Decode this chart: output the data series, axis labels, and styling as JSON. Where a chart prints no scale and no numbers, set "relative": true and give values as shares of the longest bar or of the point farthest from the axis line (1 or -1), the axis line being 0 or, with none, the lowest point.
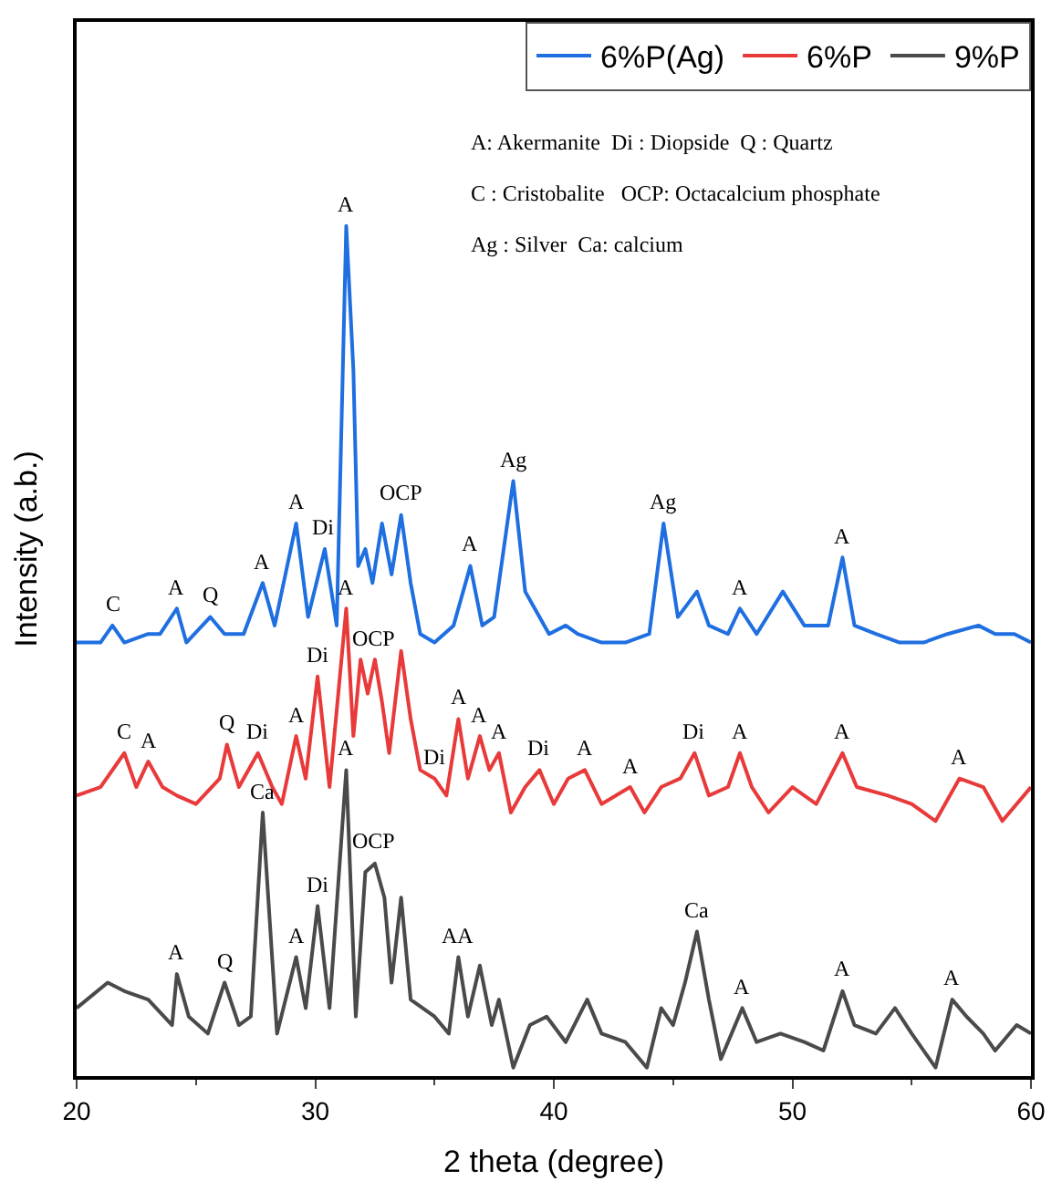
{
  "chart_data": {
    "type": "line",
    "relative": true,
    "xlabel": "2 theta (degree)",
    "ylabel": "Intensity (a.b.)",
    "xlim": [
      20,
      60
    ],
    "xticks": [
      20,
      30,
      40,
      50,
      60
    ],
    "legend": "top right",
    "marker": "none",
    "line_style": "solid",
    "series": [
      {
        "name": "6%P(Ag)",
        "color": "#1f6fe0",
        "x": [
          20.0,
          21.0,
          21.5,
          22.0,
          23.0,
          23.5,
          24.2,
          24.6,
          25.6,
          26.2,
          27.0,
          27.8,
          28.3,
          29.2,
          29.7,
          30.4,
          30.9,
          31.3,
          31.6,
          31.8,
          32.1,
          32.4,
          32.8,
          33.2,
          33.6,
          34.0,
          34.4,
          35.0,
          35.8,
          36.5,
          37.0,
          37.5,
          38.3,
          38.8,
          39.2,
          39.8,
          40.5,
          41.0,
          42.0,
          43.0,
          44.0,
          44.6,
          45.2,
          46.0,
          46.5,
          47.3,
          47.8,
          48.5,
          49.6,
          50.5,
          51.5,
          52.1,
          52.6,
          53.5,
          54.5,
          55.5,
          56.5,
          57.8,
          58.5,
          59.3,
          60.0
        ],
        "values": [
          0.51,
          0.51,
          0.53,
          0.51,
          0.52,
          0.52,
          0.55,
          0.51,
          0.54,
          0.52,
          0.52,
          0.58,
          0.53,
          0.65,
          0.54,
          0.62,
          0.53,
          1.0,
          0.83,
          0.6,
          0.62,
          0.58,
          0.65,
          0.59,
          0.66,
          0.58,
          0.52,
          0.51,
          0.53,
          0.6,
          0.53,
          0.54,
          0.7,
          0.57,
          0.55,
          0.52,
          0.53,
          0.52,
          0.51,
          0.51,
          0.52,
          0.65,
          0.54,
          0.57,
          0.53,
          0.52,
          0.55,
          0.52,
          0.57,
          0.53,
          0.53,
          0.61,
          0.53,
          0.52,
          0.51,
          0.51,
          0.52,
          0.53,
          0.52,
          0.52,
          0.51
        ]
      },
      {
        "name": "6%P",
        "color": "#e83a3a",
        "x": [
          20.0,
          21.0,
          22.0,
          22.5,
          23.0,
          23.6,
          24.2,
          25.0,
          26.0,
          26.3,
          26.8,
          27.6,
          28.2,
          28.6,
          29.2,
          29.6,
          30.1,
          30.6,
          31.3,
          31.6,
          31.9,
          32.2,
          32.5,
          32.8,
          33.1,
          33.6,
          34.0,
          34.4,
          35.0,
          35.5,
          36.0,
          36.4,
          36.9,
          37.3,
          37.7,
          38.2,
          38.8,
          39.4,
          40.0,
          40.6,
          41.3,
          42.0,
          43.2,
          43.8,
          44.5,
          45.3,
          45.9,
          46.5,
          47.3,
          47.8,
          48.3,
          49.0,
          50.0,
          51.0,
          52.1,
          52.7,
          54.0,
          55.0,
          56.0,
          57.0,
          58.0,
          58.8,
          60.0
        ],
        "values": [
          0.33,
          0.34,
          0.38,
          0.34,
          0.37,
          0.34,
          0.33,
          0.32,
          0.35,
          0.39,
          0.34,
          0.38,
          0.34,
          0.32,
          0.4,
          0.35,
          0.47,
          0.34,
          0.55,
          0.4,
          0.49,
          0.45,
          0.49,
          0.44,
          0.38,
          0.5,
          0.42,
          0.36,
          0.35,
          0.33,
          0.42,
          0.35,
          0.4,
          0.36,
          0.38,
          0.31,
          0.34,
          0.36,
          0.32,
          0.35,
          0.36,
          0.32,
          0.34,
          0.31,
          0.34,
          0.35,
          0.38,
          0.33,
          0.34,
          0.38,
          0.34,
          0.31,
          0.34,
          0.32,
          0.38,
          0.34,
          0.33,
          0.32,
          0.3,
          0.35,
          0.34,
          0.3,
          0.34
        ]
      },
      {
        "name": "9%P",
        "color": "#4a4a4a",
        "x": [
          20.0,
          21.3,
          22.0,
          23.0,
          24.0,
          24.2,
          24.7,
          25.5,
          26.2,
          26.8,
          27.3,
          27.8,
          28.4,
          29.2,
          29.6,
          30.1,
          30.6,
          31.3,
          31.7,
          32.1,
          32.5,
          32.9,
          33.2,
          33.6,
          34.0,
          35.0,
          35.6,
          36.0,
          36.4,
          36.9,
          37.4,
          37.7,
          38.3,
          39.0,
          39.7,
          40.5,
          41.4,
          42.0,
          43.0,
          43.9,
          44.5,
          45.0,
          45.5,
          46.0,
          46.5,
          47.0,
          47.9,
          48.5,
          49.5,
          50.5,
          51.3,
          52.1,
          52.6,
          53.5,
          54.3,
          55.0,
          56.0,
          56.7,
          57.3,
          58.0,
          58.5,
          59.4,
          60.0
        ],
        "values": [
          0.08,
          0.11,
          0.1,
          0.09,
          0.06,
          0.12,
          0.07,
          0.05,
          0.11,
          0.06,
          0.07,
          0.31,
          0.05,
          0.14,
          0.08,
          0.2,
          0.08,
          0.36,
          0.07,
          0.24,
          0.25,
          0.21,
          0.11,
          0.21,
          0.09,
          0.07,
          0.05,
          0.14,
          0.07,
          0.13,
          0.06,
          0.09,
          0.01,
          0.06,
          0.07,
          0.04,
          0.09,
          0.05,
          0.04,
          0.01,
          0.08,
          0.06,
          0.11,
          0.17,
          0.09,
          0.02,
          0.08,
          0.04,
          0.05,
          0.04,
          0.03,
          0.1,
          0.06,
          0.05,
          0.08,
          0.05,
          0.01,
          0.09,
          0.07,
          0.05,
          0.03,
          0.06,
          0.05
        ]
      }
    ],
    "annotations": [
      "A: Akermanite  Di : Diopside  Q : Quartz",
      "C : Cristobalite   OCP: Octacalcium phosphate",
      "Ag : Silver  Ca: calcium",
      {
        "text": "C",
        "x": 21.5,
        "y": 0.53
      },
      {
        "text": "A",
        "x": 24.2,
        "y": 0.55
      },
      {
        "text": "Q",
        "x": 25.6,
        "y": 0.54
      },
      {
        "text": "A",
        "x": 27.8,
        "y": 0.58
      },
      {
        "text": "A",
        "x": 29.2,
        "y": 0.65
      },
      {
        "text": "Di",
        "x": 30.4,
        "y": 0.62
      },
      {
        "text": "A",
        "x": 31.3,
        "y": 1.0
      },
      {
        "text": "OCP",
        "x": 33.6,
        "y": 0.66
      },
      {
        "text": "A",
        "x": 36.5,
        "y": 0.6
      },
      {
        "text": "Ag",
        "x": 38.3,
        "y": 0.7
      },
      {
        "text": "Ag",
        "x": 44.6,
        "y": 0.65
      },
      {
        "text": "A",
        "x": 47.8,
        "y": 0.55
      },
      {
        "text": "A",
        "x": 52.1,
        "y": 0.61
      },
      {
        "text": "A",
        "x": 31.3,
        "y": 0.55
      },
      {
        "text": "OCP",
        "x": 32.5,
        "y": 0.49
      },
      {
        "text": "Di",
        "x": 30.1,
        "y": 0.47
      },
      {
        "text": "C",
        "x": 22.0,
        "y": 0.38
      },
      {
        "text": "A",
        "x": 23.0,
        "y": 0.37
      },
      {
        "text": "Q",
        "x": 26.3,
        "y": 0.39
      },
      {
        "text": "Di",
        "x": 27.6,
        "y": 0.38
      },
      {
        "text": "A",
        "x": 29.2,
        "y": 0.4
      },
      {
        "text": "Di",
        "x": 35.0,
        "y": 0.35
      },
      {
        "text": "A",
        "x": 36.0,
        "y": 0.42
      },
      {
        "text": "A",
        "x": 36.9,
        "y": 0.4
      },
      {
        "text": "A",
        "x": 37.7,
        "y": 0.38
      },
      {
        "text": "Di",
        "x": 39.4,
        "y": 0.36
      },
      {
        "text": "A",
        "x": 41.3,
        "y": 0.36
      },
      {
        "text": "A",
        "x": 43.2,
        "y": 0.34
      },
      {
        "text": "Di",
        "x": 45.9,
        "y": 0.38
      },
      {
        "text": "A",
        "x": 47.8,
        "y": 0.38
      },
      {
        "text": "A",
        "x": 52.1,
        "y": 0.38
      },
      {
        "text": "A",
        "x": 57.0,
        "y": 0.35
      },
      {
        "text": "Ca",
        "x": 27.8,
        "y": 0.31
      },
      {
        "text": "A",
        "x": 31.3,
        "y": 0.36
      },
      {
        "text": "Di",
        "x": 30.1,
        "y": 0.2
      },
      {
        "text": "OCP",
        "x": 32.5,
        "y": 0.25
      },
      {
        "text": "A",
        "x": 24.2,
        "y": 0.12
      },
      {
        "text": "Q",
        "x": 26.2,
        "y": 0.11
      },
      {
        "text": "A",
        "x": 29.2,
        "y": 0.14
      },
      {
        "text": "AA",
        "x": 36.0,
        "y": 0.14
      },
      {
        "text": "Ca",
        "x": 46.0,
        "y": 0.17
      },
      {
        "text": "A",
        "x": 47.9,
        "y": 0.08
      },
      {
        "text": "A",
        "x": 52.1,
        "y": 0.1
      },
      {
        "text": "A",
        "x": 56.7,
        "y": 0.09
      }
    ]
  }
}
